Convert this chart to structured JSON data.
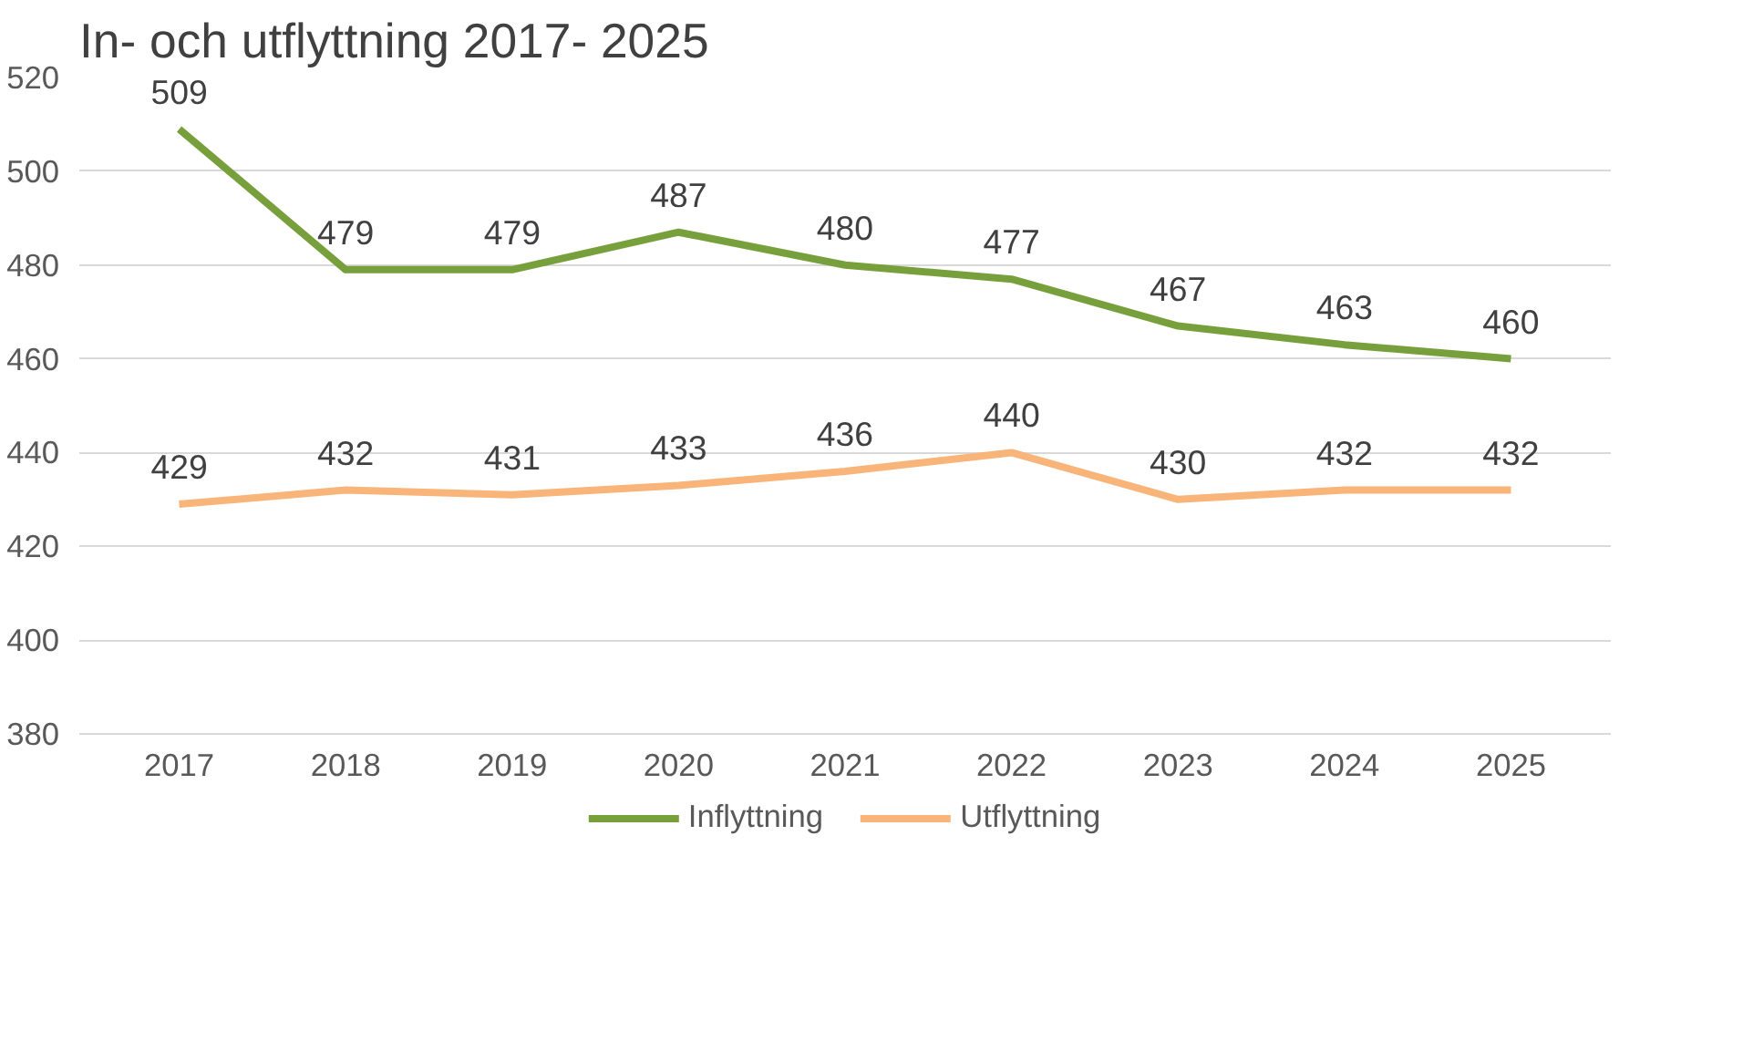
{
  "chart_data": {
    "type": "line",
    "title": "In- och utflyttning 2017- 2025",
    "categories": [
      "2017",
      "2018",
      "2019",
      "2020",
      "2021",
      "2022",
      "2023",
      "2024",
      "2025"
    ],
    "series": [
      {
        "name": "Inflyttning",
        "color": "#77a03c",
        "values": [
          509,
          479,
          479,
          487,
          480,
          477,
          467,
          463,
          460
        ]
      },
      {
        "name": "Utflyttning",
        "color": "#f9b47a",
        "values": [
          429,
          432,
          431,
          433,
          436,
          440,
          430,
          432,
          432
        ]
      }
    ],
    "ylim": [
      380,
      520
    ],
    "yticks": [
      380,
      400,
      420,
      440,
      460,
      480,
      500,
      520
    ],
    "grid": "y",
    "legend": "bottom",
    "data_labels": true,
    "marker": "none",
    "line_style": "solid"
  }
}
